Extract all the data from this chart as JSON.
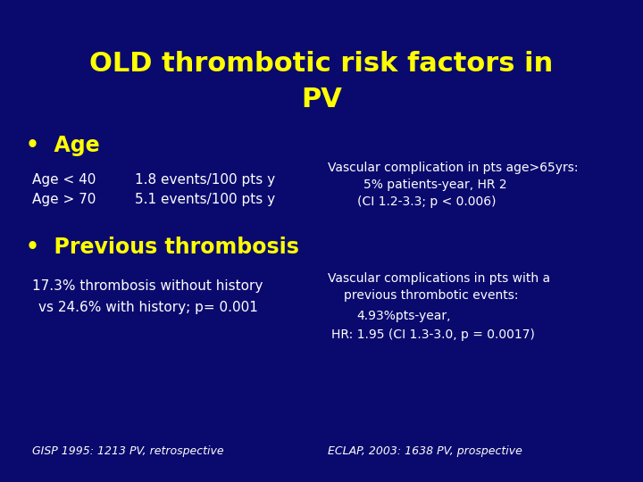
{
  "background_color": "#0a0a6e",
  "title_line1": "OLD thrombotic risk factors in",
  "title_line2": "PV",
  "title_color": "#ffff00",
  "title_fontsize": 22,
  "bullet_color": "#ffff00",
  "bullet_fontsize": 17,
  "bullet1": "Age",
  "bullet2": "Previous thrombosis",
  "white_color": "#ffffff",
  "age_line1_left": "Age < 40",
  "age_line1_right": "1.8 events/100 pts y",
  "age_line2_left": "Age > 70",
  "age_line2_right": "5.1 events/100 pts y",
  "vascular1_line1": "Vascular complication in pts age>65yrs:",
  "vascular1_line2": "5% patients-year, HR 2",
  "vascular1_line3": "(CI 1.2-3.3; p < 0.006)",
  "vascular2_line1": "Vascular complications in pts with a",
  "vascular2_line2": "previous thrombotic events:",
  "vascular2_line3": "4.93%pts-year,",
  "vascular2_line4": "HR: 1.95 (CI 1.3-3.0, p = 0.0017)",
  "thromb_line1": "17.3% thrombosis without history",
  "thromb_line2": "vs 24.6% with history; p= 0.001",
  "footer_left": "GISP 1995: 1213 PV, retrospective",
  "footer_right": "ECLAP, 2003: 1638 PV, prospective",
  "body_fontsize": 11,
  "footer_fontsize": 9,
  "small_fontsize": 10
}
